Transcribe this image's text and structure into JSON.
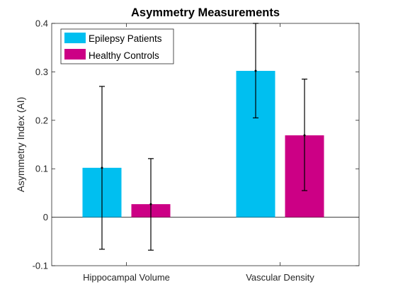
{
  "chart_data": {
    "type": "bar",
    "title": "Asymmetry Measurements",
    "xlabel": "",
    "ylabel": "Asymmetry Index (AI)",
    "categories": [
      "Hippocampal Volume",
      "Vascular Density"
    ],
    "ylim": [
      -0.1,
      0.4
    ],
    "yticks": [
      -0.1,
      0,
      0.1,
      0.2,
      0.3,
      0.4
    ],
    "ytick_labels": [
      "-0.1",
      "0",
      "0.1",
      "0.2",
      "0.3",
      "0.4"
    ],
    "grid": false,
    "legend_position": "top-left",
    "series": [
      {
        "name": "Epilepsy Patients",
        "color": "#00BFF0",
        "values": [
          0.102,
          0.302
        ],
        "error_low": [
          -0.066,
          0.205
        ],
        "error_high": [
          0.27,
          0.4
        ]
      },
      {
        "name": "Healthy Controls",
        "color": "#CC0085",
        "values": [
          0.027,
          0.169
        ],
        "error_low": [
          -0.068,
          0.055
        ],
        "error_high": [
          0.121,
          0.285
        ]
      }
    ]
  }
}
